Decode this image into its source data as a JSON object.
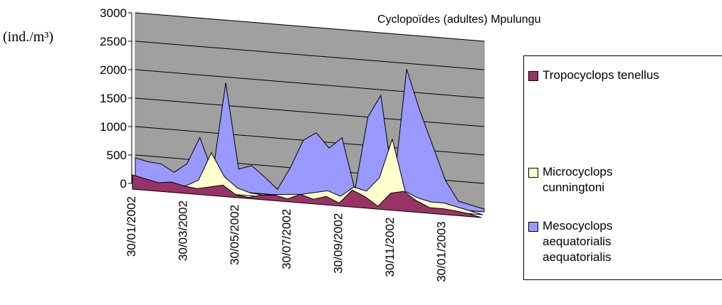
{
  "chart_data": {
    "type": "area3d",
    "title": "Cyclopoïdes (adultes) Mpulungu",
    "y_label": "(ind./m³)",
    "ylim": [
      0,
      3000
    ],
    "yticks": [
      0,
      500,
      1000,
      1500,
      2000,
      2500,
      3000
    ],
    "grid": true,
    "categories": [
      "30/01/2002",
      null,
      null,
      null,
      "30/03/2002",
      null,
      null,
      null,
      "30/05/2002",
      null,
      null,
      null,
      "30/07/2002",
      null,
      null,
      null,
      "30/09/2002",
      null,
      null,
      null,
      "30/11/2002",
      null,
      null,
      null,
      "30/01/2003",
      null,
      null,
      null
    ],
    "series": [
      {
        "name": "Tropocyclops tenellus",
        "color": "#993366",
        "values": [
          250,
          200,
          150,
          180,
          130,
          100,
          150,
          200,
          50,
          20,
          80,
          100,
          50,
          150,
          80,
          150,
          50,
          300,
          200,
          50,
          300,
          350,
          200,
          100,
          100,
          80,
          50,
          0
        ]
      },
      {
        "name": "Microcyclops cunningtoni",
        "color": "#FFFFCC",
        "values": [
          100,
          80,
          60,
          50,
          80,
          200,
          700,
          300,
          120,
          50,
          30,
          60,
          80,
          100,
          150,
          200,
          120,
          300,
          250,
          500,
          1200,
          300,
          200,
          150,
          150,
          100,
          50,
          0
        ]
      },
      {
        "name": "Mesocyclops aequatorialis aequatorialis",
        "color": "#9999FF",
        "values": [
          450,
          400,
          380,
          250,
          420,
          900,
          300,
          1900,
          400,
          480,
          300,
          100,
          500,
          1000,
          1150,
          900,
          1100,
          200,
          1500,
          1900,
          300,
          2400,
          1700,
          1100,
          500,
          150,
          100,
          50
        ]
      }
    ]
  }
}
